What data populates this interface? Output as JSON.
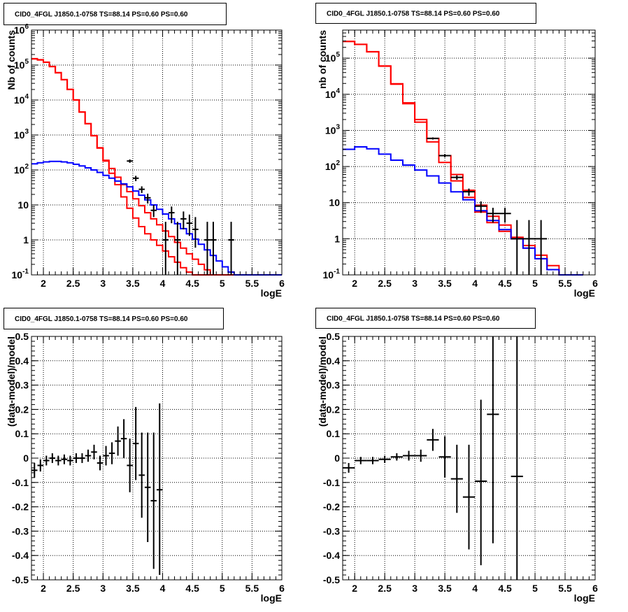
{
  "colors": {
    "data": "#000000",
    "total_model": "#ff0000",
    "component_model": "#0000ff",
    "grid": "#000000",
    "background": "#ffffff"
  },
  "chart_data": [
    {
      "type": "line",
      "title": "CID0_4FGL J1850.1-0758 TS=88.14 PS=0.60 PS=0.60",
      "xlabel": "logE",
      "ylabel": "Nb of counts",
      "xlim": [
        1.8,
        6.0
      ],
      "ylim": [
        0.1,
        1000000
      ],
      "ylog": true,
      "grid": true,
      "x_tick_labels": [
        "2",
        "2.5",
        "3",
        "3.5",
        "4",
        "4.5",
        "5",
        "5.5",
        "6"
      ],
      "y_tick_labels": [
        "10⁻¹",
        "1",
        "10",
        "10²",
        "10³",
        "10⁴",
        "10⁵",
        "10⁶"
      ],
      "x_edges": [
        1.8,
        1.9,
        2.0,
        2.1,
        2.2,
        2.3,
        2.4,
        2.5,
        2.6,
        2.7,
        2.8,
        2.9,
        3.0,
        3.1,
        3.2,
        3.3,
        3.4,
        3.5,
        3.6,
        3.7,
        3.8,
        3.9,
        4.0,
        4.1,
        4.2,
        4.3,
        4.4,
        4.5,
        4.6,
        4.7,
        4.8,
        4.9,
        5.0,
        5.1,
        5.2,
        5.3,
        5.4,
        5.5,
        5.6,
        5.7,
        5.8,
        5.9,
        6.0
      ],
      "series": [
        {
          "kind": "step",
          "values": [
            150000,
            140000,
            120000,
            90000,
            60000,
            38000,
            20000,
            10000,
            4500,
            2100,
            950,
            420,
            180,
            80,
            38,
            17,
            8,
            4.2,
            2.4,
            1.5,
            1.0,
            0.7,
            0.48,
            0.33,
            0.23,
            0.16,
            0.12,
            0.1,
            0.1,
            0.1,
            0.1,
            0.1,
            0.1,
            0.1,
            0.1,
            0.1,
            0.1,
            0.1,
            0.1,
            0.1,
            0.1,
            0.1
          ]
        },
        {
          "kind": "step",
          "values": [
            152000,
            142000,
            121000,
            91000,
            61000,
            38500,
            20200,
            10100,
            4550,
            2120,
            960,
            430,
            190,
            110,
            62,
            38,
            24,
            15,
            9.5,
            6.0,
            4.0,
            2.7,
            1.8,
            1.25,
            0.85,
            0.58,
            0.4,
            0.28,
            0.2,
            0.14,
            0.1,
            0.1,
            0.1,
            0.1,
            0.1,
            0.1,
            0.1,
            0.1,
            0.1,
            0.1,
            0.1,
            0.1
          ]
        },
        {
          "kind": "step",
          "values": [
            150,
            160,
            170,
            175,
            175,
            170,
            160,
            145,
            130,
            115,
            100,
            85,
            70,
            58,
            48,
            40,
            33,
            25,
            19,
            14,
            10,
            7.5,
            5.5,
            4.0,
            2.9,
            2.1,
            1.5,
            1.05,
            0.75,
            0.52,
            0.36,
            0.25,
            0.17,
            0.12,
            0.1,
            0.1,
            0.1,
            0.1,
            0.1,
            0.1,
            0.1,
            0.1
          ]
        },
        {
          "kind": "errorbars",
          "xerr": 0.05,
          "points": [
            {
              "x": 3.45,
              "y": 180,
              "ylo": 160,
              "yhi": 200
            },
            {
              "x": 3.55,
              "y": 58,
              "ylo": 48,
              "yhi": 68
            },
            {
              "x": 3.65,
              "y": 28,
              "ylo": 22,
              "yhi": 34
            },
            {
              "x": 3.75,
              "y": 16,
              "ylo": 11,
              "yhi": 21
            },
            {
              "x": 3.85,
              "y": 7,
              "ylo": 4.5,
              "yhi": 10
            },
            {
              "x": 4.05,
              "y": 1,
              "ylo": 0.1,
              "yhi": 3.3
            },
            {
              "x": 4.15,
              "y": 6,
              "ylo": 3,
              "yhi": 9
            },
            {
              "x": 4.25,
              "y": 1,
              "ylo": 0.1,
              "yhi": 3.3
            },
            {
              "x": 4.35,
              "y": 4,
              "ylo": 2,
              "yhi": 6.5
            },
            {
              "x": 4.45,
              "y": 3,
              "ylo": 1.3,
              "yhi": 5.3
            },
            {
              "x": 4.55,
              "y": 2,
              "ylo": 0.6,
              "yhi": 4.5
            },
            {
              "x": 4.75,
              "y": 1,
              "ylo": 0.1,
              "yhi": 3.3
            },
            {
              "x": 4.85,
              "y": 1,
              "ylo": 0.1,
              "yhi": 3.3
            },
            {
              "x": 5.15,
              "y": 1,
              "ylo": 0.1,
              "yhi": 3.3
            }
          ]
        }
      ]
    },
    {
      "type": "line",
      "title": "CID0_4FGL J1850.1-0758 TS=88.14 PS=0.60 PS=0.60",
      "xlabel": "logE",
      "ylabel": "nb of counts",
      "xlim": [
        1.8,
        6.0
      ],
      "ylim": [
        0.1,
        600000
      ],
      "ylog": true,
      "grid": true,
      "x_tick_labels": [
        "2",
        "2.5",
        "3",
        "3.5",
        "4",
        "4.5",
        "5",
        "5.5",
        "6"
      ],
      "y_tick_labels": [
        "10⁻¹",
        "1",
        "10",
        "10²",
        "10³",
        "10⁴",
        "10⁵"
      ],
      "x_edges": [
        1.8,
        2.0,
        2.2,
        2.4,
        2.6,
        2.8,
        3.0,
        3.2,
        3.4,
        3.6,
        3.8,
        4.0,
        4.2,
        4.4,
        4.6,
        4.8,
        5.0,
        5.2,
        5.4,
        5.6,
        5.8,
        6.0
      ],
      "series": [
        {
          "kind": "step",
          "values": [
            290000,
            240000,
            150000,
            60000,
            19000,
            5500,
            1700,
            480,
            130,
            40,
            14,
            5.5,
            2.8,
            1.6,
            1.0,
            0.55,
            0.28,
            0.14,
            0.1,
            0.1
          ]
        },
        {
          "kind": "step",
          "values": [
            292000,
            242000,
            151000,
            61000,
            19500,
            5800,
            2000,
            600,
            200,
            60,
            22,
            8.5,
            4.2,
            2.4,
            1.1,
            0.65,
            0.35,
            0.18,
            0.1,
            0.1
          ]
        },
        {
          "kind": "step",
          "values": [
            300,
            350,
            310,
            220,
            150,
            110,
            80,
            55,
            35,
            20,
            12,
            6.0,
            3.2,
            1.8,
            1.0,
            0.55,
            0.28,
            0.14,
            0.1,
            0.1
          ]
        },
        {
          "kind": "errorbars",
          "xerr": 0.1,
          "points": [
            {
              "x": 3.3,
              "y": 600,
              "ylo": 560,
              "yhi": 640
            },
            {
              "x": 3.5,
              "y": 200,
              "ylo": 180,
              "yhi": 220
            },
            {
              "x": 3.7,
              "y": 50,
              "ylo": 43,
              "yhi": 57
            },
            {
              "x": 3.9,
              "y": 20,
              "ylo": 15.5,
              "yhi": 24.5
            },
            {
              "x": 4.1,
              "y": 8,
              "ylo": 5.2,
              "yhi": 10.8
            },
            {
              "x": 4.3,
              "y": 5,
              "ylo": 2.8,
              "yhi": 7.2
            },
            {
              "x": 4.5,
              "y": 5,
              "ylo": 2.8,
              "yhi": 7.2
            },
            {
              "x": 4.7,
              "y": 1,
              "ylo": 0.1,
              "yhi": 3.3
            },
            {
              "x": 4.9,
              "y": 1,
              "ylo": 0.1,
              "yhi": 3.3
            },
            {
              "x": 5.1,
              "y": 1,
              "ylo": 0.1,
              "yhi": 3.3
            }
          ]
        }
      ]
    },
    {
      "type": "scatter",
      "title": "CID0_4FGL J1850.1-0758 TS=88.14 PS=0.60 PS=0.60",
      "xlabel": "logE",
      "ylabel": "(data-model)/model",
      "xlim": [
        1.8,
        6.0
      ],
      "ylim": [
        -0.5,
        0.5
      ],
      "ylog": false,
      "grid": true,
      "x_tick_labels": [
        "2",
        "2.5",
        "3",
        "3.5",
        "4",
        "4.5",
        "5",
        "5.5",
        "6"
      ],
      "y_tick_labels": [
        "-0.5",
        "-0.4",
        "-0.3",
        "-0.2",
        "-0.1",
        "0",
        "0.1",
        "0.2",
        "0.3",
        "0.4",
        "0.5"
      ],
      "series": [
        {
          "kind": "errorbars",
          "xerr": 0.05,
          "points": [
            {
              "x": 1.85,
              "y": -0.05,
              "ylo": -0.08,
              "yhi": -0.02
            },
            {
              "x": 1.95,
              "y": -0.03,
              "ylo": -0.055,
              "yhi": -0.005
            },
            {
              "x": 2.05,
              "y": -0.01,
              "ylo": -0.03,
              "yhi": 0.01
            },
            {
              "x": 2.15,
              "y": 0.0,
              "ylo": -0.02,
              "yhi": 0.02
            },
            {
              "x": 2.25,
              "y": -0.01,
              "ylo": -0.03,
              "yhi": 0.01
            },
            {
              "x": 2.35,
              "y": -0.005,
              "ylo": -0.025,
              "yhi": 0.015
            },
            {
              "x": 2.45,
              "y": -0.01,
              "ylo": -0.03,
              "yhi": 0.01
            },
            {
              "x": 2.55,
              "y": 0.0,
              "ylo": -0.02,
              "yhi": 0.02
            },
            {
              "x": 2.65,
              "y": 0.0,
              "ylo": -0.02,
              "yhi": 0.02
            },
            {
              "x": 2.75,
              "y": 0.01,
              "ylo": -0.015,
              "yhi": 0.035
            },
            {
              "x": 2.85,
              "y": 0.025,
              "ylo": -0.005,
              "yhi": 0.055
            },
            {
              "x": 2.95,
              "y": -0.02,
              "ylo": -0.05,
              "yhi": 0.01
            },
            {
              "x": 3.05,
              "y": 0.01,
              "ylo": -0.03,
              "yhi": 0.05
            },
            {
              "x": 3.15,
              "y": 0.02,
              "ylo": -0.025,
              "yhi": 0.065
            },
            {
              "x": 3.25,
              "y": 0.07,
              "ylo": 0.01,
              "yhi": 0.13
            },
            {
              "x": 3.35,
              "y": 0.08,
              "ylo": 0.0,
              "yhi": 0.16
            },
            {
              "x": 3.45,
              "y": -0.03,
              "ylo": -0.14,
              "yhi": 0.08
            },
            {
              "x": 3.55,
              "y": 0.06,
              "ylo": -0.09,
              "yhi": 0.21
            },
            {
              "x": 3.65,
              "y": -0.07,
              "ylo": -0.245,
              "yhi": 0.105
            },
            {
              "x": 3.75,
              "y": -0.12,
              "ylo": -0.345,
              "yhi": 0.105
            },
            {
              "x": 3.85,
              "y": -0.175,
              "ylo": -0.455,
              "yhi": 0.105
            },
            {
              "x": 3.95,
              "y": -0.13,
              "ylo": -0.48,
              "yhi": 0.225
            }
          ]
        }
      ]
    },
    {
      "type": "scatter",
      "title": "CID0_4FGL J1850.1-0758 TS=88.14 PS=0.60 PS=0.60",
      "xlabel": "logE",
      "ylabel": "(data-model)/model",
      "xlim": [
        1.8,
        6.0
      ],
      "ylim": [
        -0.5,
        0.5
      ],
      "ylog": false,
      "grid": true,
      "x_tick_labels": [
        "2",
        "2.5",
        "3",
        "3.5",
        "4",
        "4.5",
        "5",
        "5.5",
        "6"
      ],
      "y_tick_labels": [
        "-0.5",
        "-0.4",
        "-0.3",
        "-0.2",
        "-0.1",
        "0",
        "0.1",
        "0.2",
        "0.3",
        "0.4",
        "0.5"
      ],
      "series": [
        {
          "kind": "errorbars",
          "xerr": 0.1,
          "points": [
            {
              "x": 1.9,
              "y": -0.04,
              "ylo": -0.06,
              "yhi": -0.02
            },
            {
              "x": 2.1,
              "y": -0.01,
              "ylo": -0.025,
              "yhi": 0.005
            },
            {
              "x": 2.3,
              "y": -0.01,
              "ylo": -0.025,
              "yhi": 0.005
            },
            {
              "x": 2.5,
              "y": -0.005,
              "ylo": -0.02,
              "yhi": 0.01
            },
            {
              "x": 2.7,
              "y": 0.005,
              "ylo": -0.01,
              "yhi": 0.02
            },
            {
              "x": 2.9,
              "y": 0.01,
              "ylo": -0.01,
              "yhi": 0.03
            },
            {
              "x": 3.1,
              "y": 0.01,
              "ylo": -0.015,
              "yhi": 0.035
            },
            {
              "x": 3.3,
              "y": 0.075,
              "ylo": 0.03,
              "yhi": 0.12
            },
            {
              "x": 3.5,
              "y": 0.005,
              "ylo": -0.08,
              "yhi": 0.09
            },
            {
              "x": 3.7,
              "y": -0.085,
              "ylo": -0.225,
              "yhi": 0.055
            },
            {
              "x": 3.9,
              "y": -0.16,
              "ylo": -0.375,
              "yhi": 0.055
            },
            {
              "x": 4.1,
              "y": -0.095,
              "ylo": -0.44,
              "yhi": 0.24
            },
            {
              "x": 4.3,
              "y": 0.18,
              "ylo": -0.35,
              "yhi": 0.5
            },
            {
              "x": 4.7,
              "y": -0.075,
              "ylo": -0.5,
              "yhi": 0.5
            }
          ]
        }
      ]
    }
  ]
}
